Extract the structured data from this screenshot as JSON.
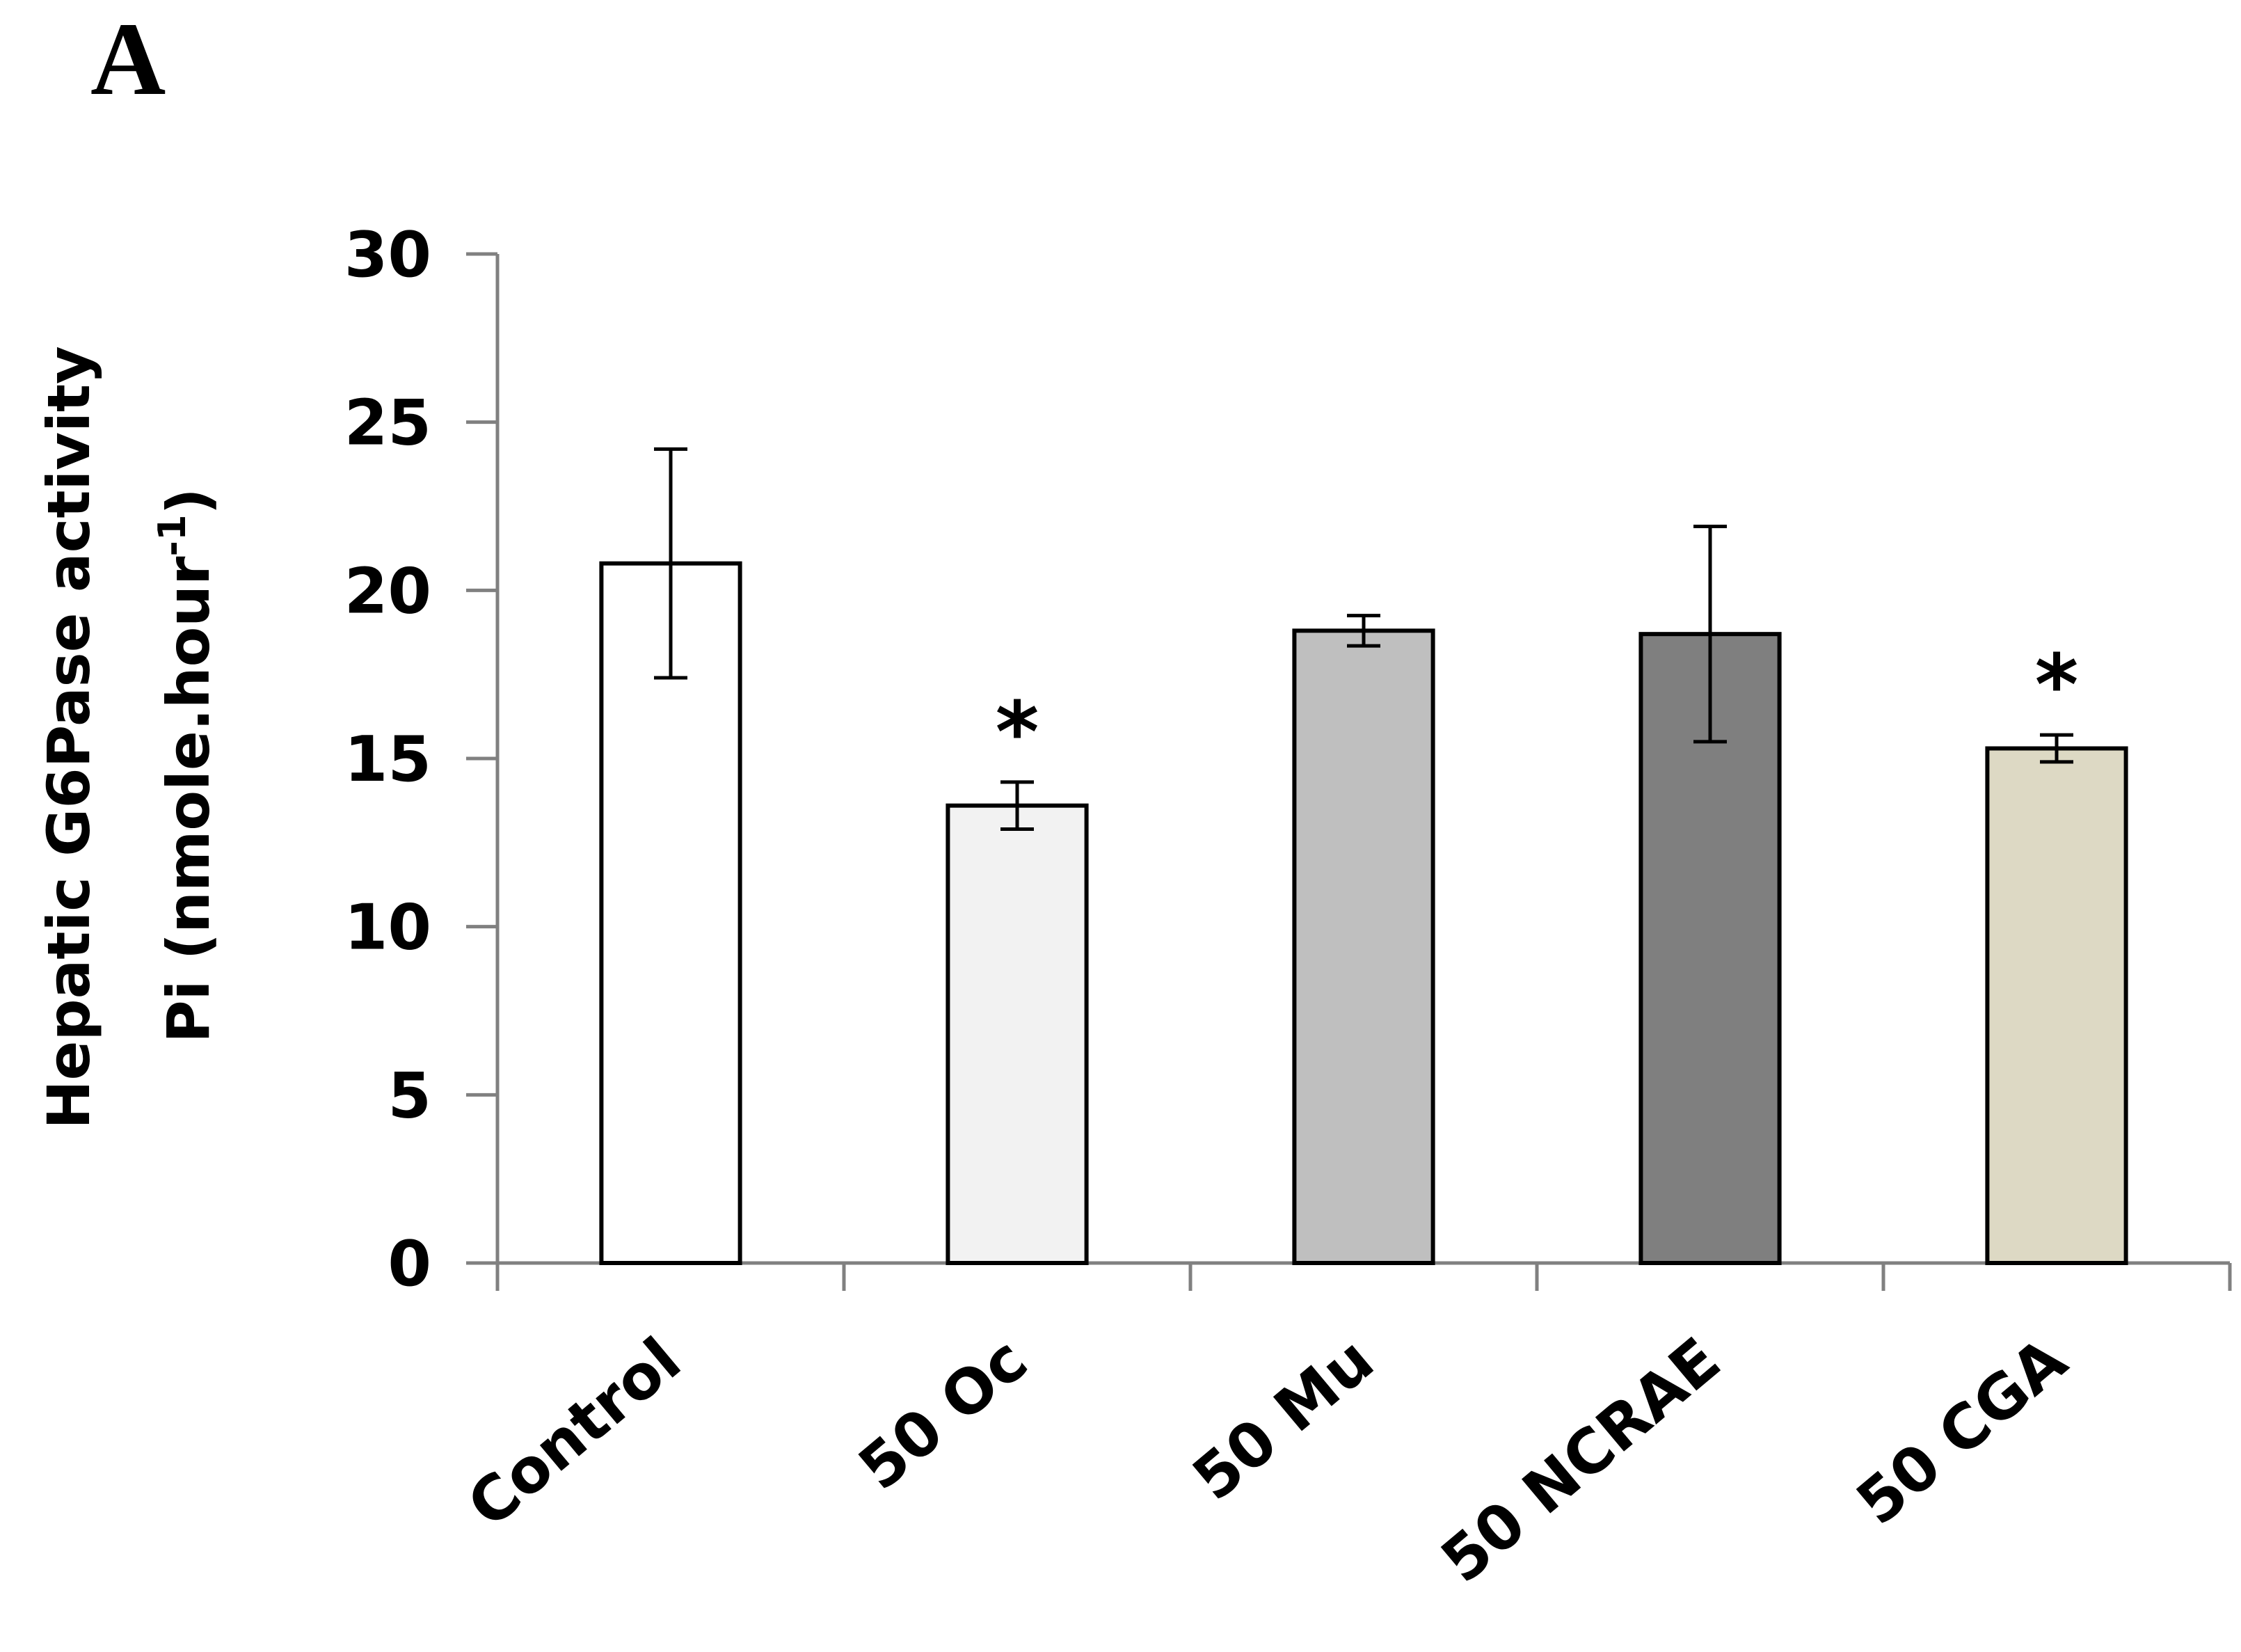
{
  "panel_label": "A",
  "chart_data": {
    "type": "bar",
    "ylabel_line1": "Hepatic G6Pase activity",
    "ylabel_line2_main": "Pi (nmole.hour",
    "ylabel_line2_sup": "-1",
    "ylabel_line2_end": ")",
    "categories": [
      "Control",
      "50 Oc",
      "50 Mu",
      "50 NCRAE",
      "50 CGA"
    ],
    "values": [
      20.8,
      13.6,
      18.8,
      18.7,
      15.3
    ],
    "errors": [
      3.4,
      0.7,
      0.45,
      3.2,
      0.4
    ],
    "significance": [
      "",
      "*",
      "",
      "",
      "*"
    ],
    "colors": [
      "#ffffff",
      "#f2f2f2",
      "#bfbfbf",
      "#7f7f7f",
      "#ddd9c4"
    ],
    "ylim": [
      0,
      30
    ],
    "yticks": [
      "0",
      "5",
      "10",
      "15",
      "20",
      "25",
      "30"
    ],
    "grid": false
  }
}
